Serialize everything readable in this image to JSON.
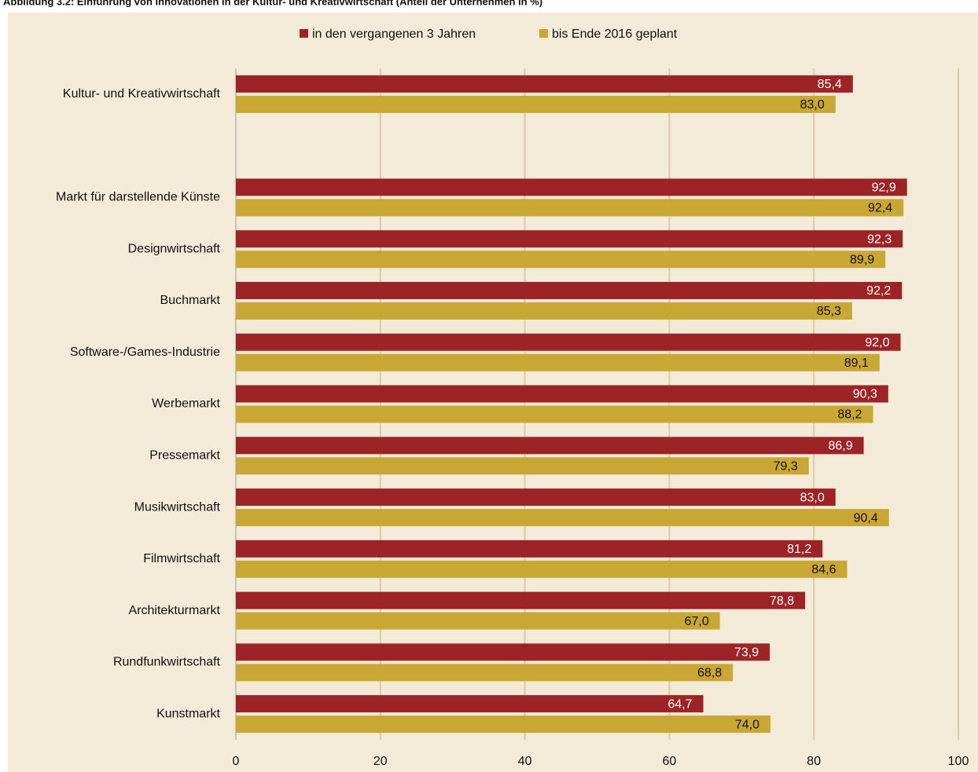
{
  "chart_data": {
    "type": "hbar",
    "title": "Abbildung 3.2: Einführung von Innovationen in der Kultur- und Kreativwirtschaft (Anteil der Unternehmen in %)",
    "categories": [
      "Kultur- und Kreativwirtschaft",
      null,
      "Markt für darstellende Künste",
      "Designwirtschaft",
      "Buchmarkt",
      "Software-/Games-Industrie",
      "Werbemarkt",
      "Pressemarkt",
      "Musikwirtschaft",
      "Filmwirtschaft",
      "Architekturmarkt",
      "Rundfunkwirtschaft",
      "Kunstmarkt"
    ],
    "series": [
      {
        "name": "in den vergangenen 3 Jahren",
        "color": "#9c2426",
        "values": [
          85.4,
          null,
          92.9,
          92.3,
          92.2,
          92.0,
          90.3,
          86.9,
          83.0,
          81.2,
          78.8,
          73.9,
          64.7
        ],
        "value_labels": [
          "85,4",
          null,
          "92,9",
          "92,3",
          "92,2",
          "92,0",
          "90,3",
          "86,9",
          "83,0",
          "81,2",
          "78,8",
          "73,9",
          "64,7"
        ]
      },
      {
        "name": "bis Ende 2016 geplant",
        "color": "#c9a735",
        "values": [
          83.0,
          null,
          92.4,
          89.9,
          85.3,
          89.1,
          88.2,
          79.3,
          90.4,
          84.6,
          67.0,
          68.8,
          74.0
        ],
        "value_labels": [
          "83,0",
          null,
          "92,4",
          "89,9",
          "85,3",
          "89,1",
          "88,2",
          "79,3",
          "90,4",
          "84,6",
          "67,0",
          "68,8",
          "74,0"
        ]
      }
    ],
    "xlim": [
      0,
      100
    ],
    "xticks": [
      0,
      20,
      40,
      60,
      80,
      100
    ],
    "grid": true
  }
}
